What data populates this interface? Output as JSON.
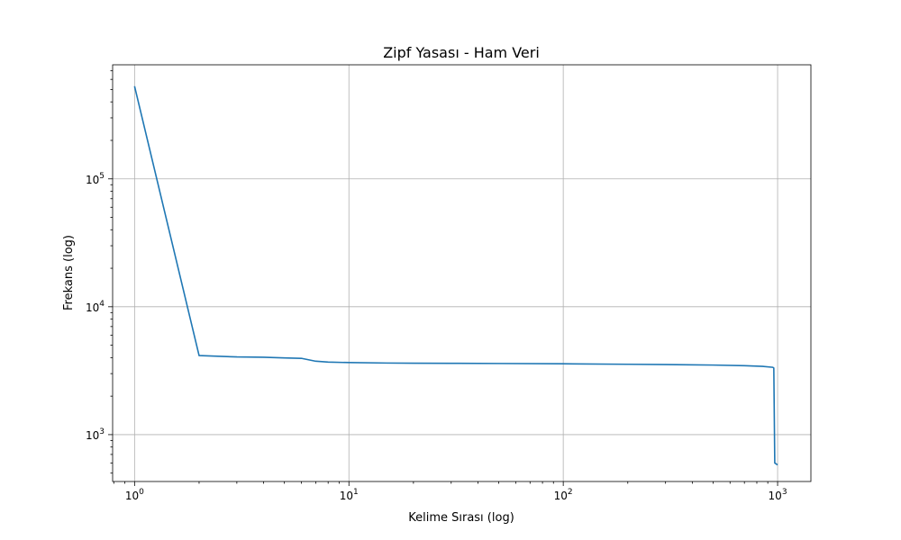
{
  "chart_data": {
    "type": "line",
    "title": "Zipf Yasası - Ham Veri",
    "xlabel": "Kelime Sırası (log)",
    "ylabel": "Frekans (log)",
    "xscale": "log",
    "yscale": "log",
    "xlim": [
      0.79,
      1430
    ],
    "ylim": [
      430,
      780000
    ],
    "grid": true,
    "x_ticks": [
      {
        "value": 1,
        "base": "10",
        "exp": "0"
      },
      {
        "value": 10,
        "base": "10",
        "exp": "1"
      },
      {
        "value": 100,
        "base": "10",
        "exp": "2"
      },
      {
        "value": 1000,
        "base": "10",
        "exp": "3"
      }
    ],
    "y_ticks": [
      {
        "value": 1000,
        "base": "10",
        "exp": "3"
      },
      {
        "value": 10000,
        "base": "10",
        "exp": "4"
      },
      {
        "value": 100000,
        "base": "10",
        "exp": "5"
      }
    ],
    "series": [
      {
        "color": "#1f77b4",
        "x": [
          1,
          2,
          3,
          4,
          5,
          6,
          7,
          8,
          10,
          15,
          20,
          30,
          50,
          100,
          200,
          300,
          500,
          700,
          850,
          950,
          960,
          970,
          1000
        ],
        "y": [
          530000,
          4150,
          4050,
          4030,
          3980,
          3950,
          3750,
          3690,
          3660,
          3630,
          3620,
          3610,
          3600,
          3580,
          3550,
          3530,
          3500,
          3460,
          3420,
          3360,
          3320,
          600,
          580
        ]
      }
    ]
  }
}
